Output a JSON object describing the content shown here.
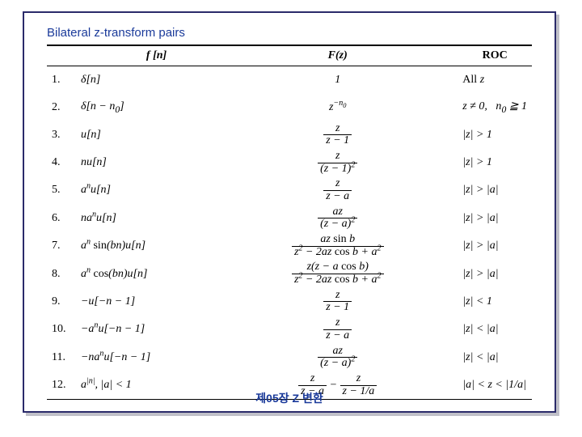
{
  "title": "Bilateral z-transform pairs",
  "footer": "제05장 Z 변환",
  "columns": {
    "fn": "f [n]",
    "Fz": "F(z)",
    "roc": "ROC"
  },
  "colors": {
    "border": "#2a2a6a",
    "title": "#1a3a9a",
    "shadow": "#c0c0c8",
    "rule": "#000000",
    "bg": "#ffffff"
  },
  "rows": [
    {
      "n": "1.",
      "fn_html": "δ[<i>n</i>]",
      "Fz_html": "1",
      "roc_html": "<span class='up'>All</span> z"
    },
    {
      "n": "2.",
      "fn_html": "δ[<i>n</i> − <i>n</i><sub>0</sub>]",
      "Fz_html": "z<sup>−n<sub>0</sub></sup>",
      "roc_html": "z ≠ 0,&nbsp;&nbsp; n<sub>0</sub> ≧ 1"
    },
    {
      "n": "3.",
      "fn_html": "u[<i>n</i>]",
      "Fz_frac": {
        "top": "z",
        "bot": "z − 1"
      },
      "roc_html": "|z| > 1"
    },
    {
      "n": "4.",
      "fn_html": "<i>n</i>u[<i>n</i>]",
      "Fz_frac": {
        "top": "z",
        "bot": "(z − 1)<sup>2</sup>"
      },
      "roc_html": "|z| > 1"
    },
    {
      "n": "5.",
      "fn_html": "a<sup>n</sup>u[<i>n</i>]",
      "Fz_frac": {
        "top": "z",
        "bot": "z − a"
      },
      "roc_html": "|z| > |a|"
    },
    {
      "n": "6.",
      "fn_html": "na<sup>n</sup>u[<i>n</i>]",
      "Fz_frac": {
        "top": "az",
        "bot": "(z − a)<sup>2</sup>"
      },
      "roc_html": "|z| > |a|"
    },
    {
      "n": "7.",
      "fn_html": "a<sup>n</sup> <span class='up'>sin</span>(bn)u[<i>n</i>]",
      "Fz_frac": {
        "top": "az <span class='up'>sin</span> b",
        "bot": "z<sup>2</sup> − 2az <span class='up'>cos</span> b + a<sup>2</sup>"
      },
      "roc_html": "|z| > |a|"
    },
    {
      "n": "8.",
      "fn_html": "a<sup>n</sup> <span class='up'>cos</span>(bn)u[<i>n</i>]",
      "Fz_frac": {
        "top": "z(z − a <span class='up'>cos</span> b)",
        "bot": "z<sup>2</sup> − 2az <span class='up'>cos</span> b + a<sup>2</sup>"
      },
      "roc_html": "|z| > |a|"
    },
    {
      "n": "9.",
      "fn_html": "−u[−<i>n</i> − 1]",
      "Fz_frac": {
        "top": "z",
        "bot": "z − 1"
      },
      "roc_html": "|z| < 1"
    },
    {
      "n": "10.",
      "fn_html": "−a<sup>n</sup>u[−<i>n</i> − 1]",
      "Fz_frac": {
        "top": "z",
        "bot": "z − a"
      },
      "roc_html": "|z| < |a|"
    },
    {
      "n": "11.",
      "fn_html": "−na<sup>n</sup>u[−<i>n</i> − 1]",
      "Fz_frac": {
        "top": "az",
        "bot": "(z − a)<sup>2</sup>"
      },
      "roc_html": "|z| < |a|"
    },
    {
      "n": "12.",
      "fn_html": "a<sup>|n|</sup>, |a| < 1",
      "Fz_two_frac": {
        "f1": {
          "top": "z",
          "bot": "z − a"
        },
        "minus": " − ",
        "f2": {
          "top": "z",
          "bot": "z − 1/a"
        }
      },
      "roc_html": "|a| < z < |1/a|"
    }
  ]
}
